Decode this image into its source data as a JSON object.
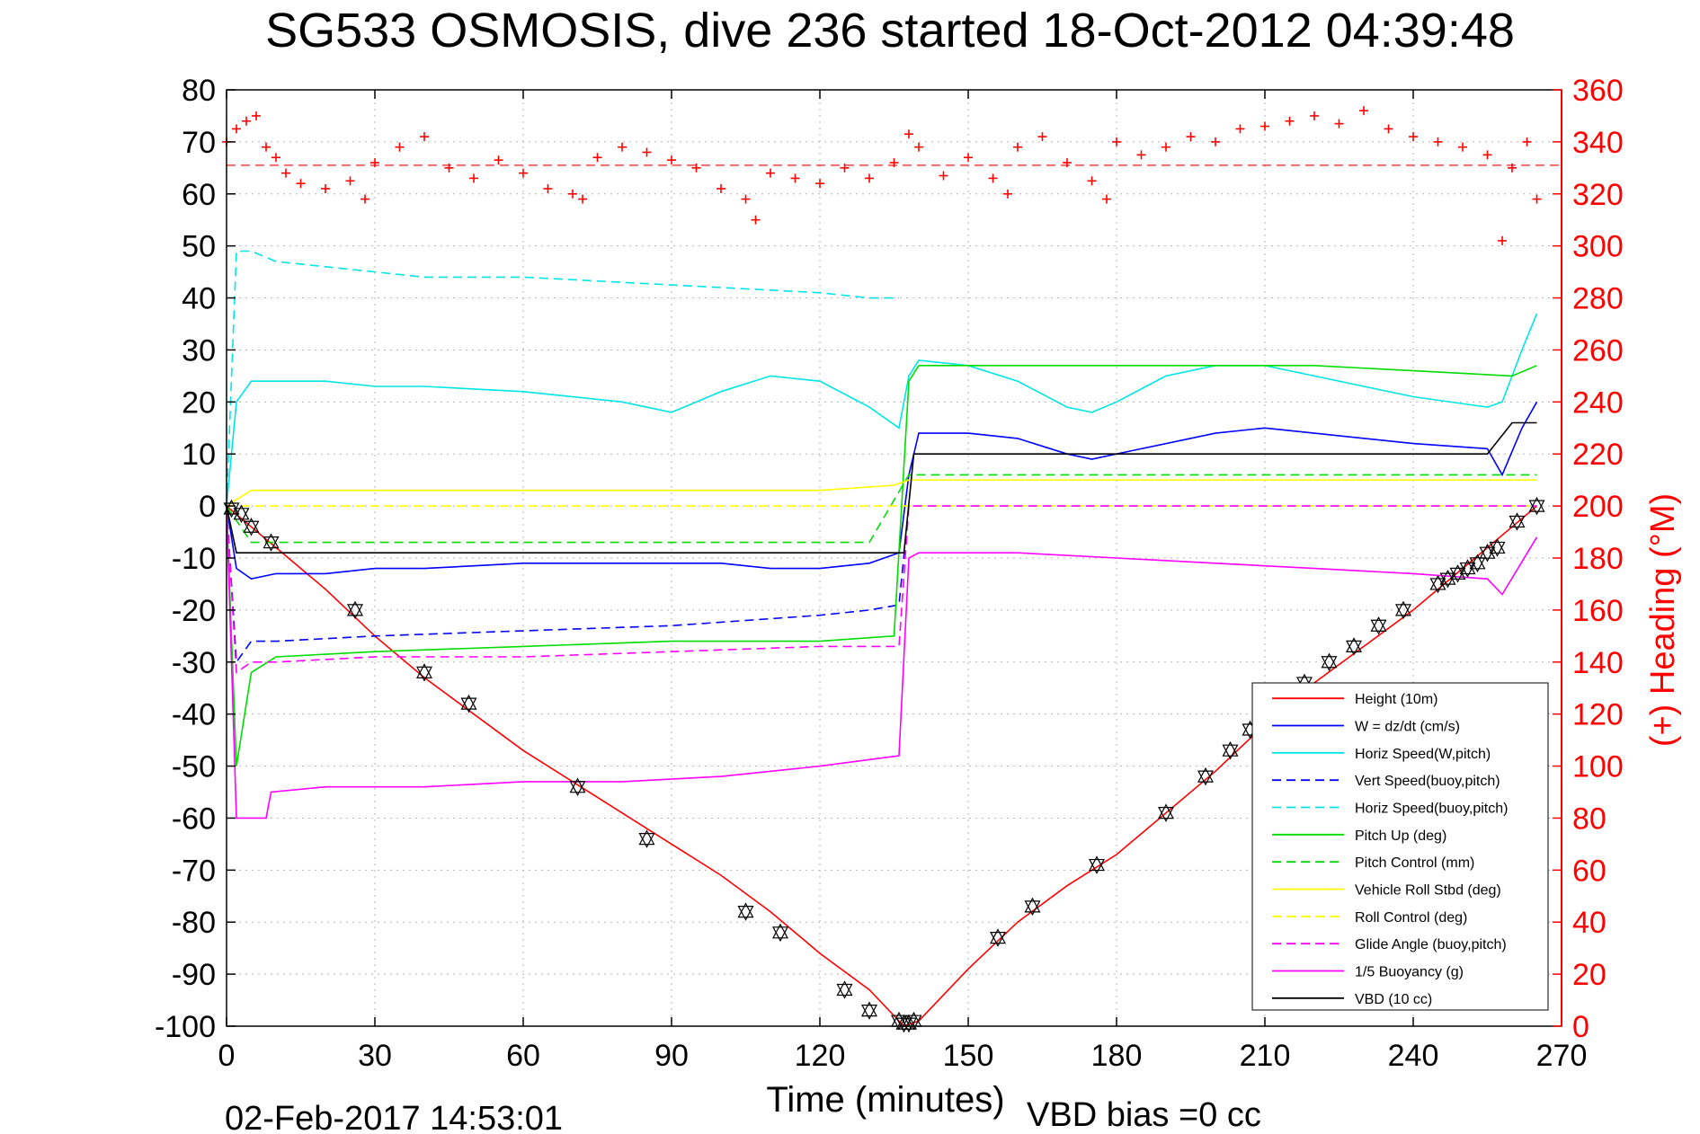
{
  "chart_data": {
    "type": "line",
    "title": "SG533 OSMOSIS, dive 236 started 18-Oct-2012 04:39:48",
    "xlabel": "Time (minutes)",
    "ylabel_right": "(+) Heading (°M)",
    "footer_date": "02-Feb-2017 14:53:01",
    "footer_bias": "VBD bias =0 cc",
    "xlim": [
      0,
      270
    ],
    "ylim_left": [
      -100,
      80
    ],
    "ylim_right": [
      0,
      360
    ],
    "x_ticks": [
      0,
      30,
      60,
      90,
      120,
      150,
      180,
      210,
      240,
      270
    ],
    "y_ticks_left": [
      80,
      70,
      60,
      50,
      40,
      30,
      20,
      10,
      0,
      -10,
      -20,
      -30,
      -40,
      -50,
      -60,
      -70,
      -80,
      -90,
      -100
    ],
    "y_ticks_right": [
      360,
      340,
      320,
      300,
      280,
      260,
      240,
      220,
      200,
      180,
      160,
      140,
      120,
      100,
      80,
      60,
      40,
      20,
      0
    ],
    "grid": true,
    "legend_position": "bottom-right",
    "heading_reference": 331,
    "series": [
      {
        "name": "Height (10m)",
        "color": "#ff0000",
        "style": "solid",
        "x": [
          0,
          5,
          10,
          20,
          30,
          40,
          50,
          60,
          70,
          80,
          90,
          100,
          110,
          120,
          130,
          137,
          140,
          150,
          160,
          170,
          180,
          190,
          200,
          210,
          220,
          230,
          240,
          250,
          260,
          265
        ],
        "y": [
          0,
          -4,
          -8,
          -16,
          -25,
          -33,
          -40,
          -47,
          -53,
          -59,
          -65,
          -71,
          -78,
          -86,
          -93,
          -100,
          -99,
          -89,
          -80,
          -73,
          -67,
          -59,
          -51,
          -42,
          -34,
          -27,
          -20,
          -12,
          -4,
          0
        ]
      },
      {
        "name": "W = dz/dt (cm/s)",
        "color": "#0000ff",
        "style": "solid",
        "x": [
          0,
          2,
          5,
          10,
          20,
          30,
          40,
          60,
          80,
          100,
          110,
          120,
          130,
          136,
          138,
          140,
          150,
          160,
          170,
          175,
          185,
          200,
          210,
          220,
          240,
          255,
          258,
          262,
          265
        ],
        "y": [
          0,
          -12,
          -14,
          -13,
          -13,
          -12,
          -12,
          -11,
          -11,
          -11,
          -12,
          -12,
          -11,
          -9,
          6,
          14,
          14,
          13,
          10,
          9,
          11,
          14,
          15,
          14,
          12,
          11,
          6,
          15,
          20
        ]
      },
      {
        "name": "Horiz Speed(W,pitch)",
        "color": "#00e5e5",
        "style": "solid",
        "x": [
          0,
          2,
          5,
          10,
          20,
          30,
          40,
          60,
          80,
          90,
          100,
          110,
          120,
          130,
          136,
          138,
          140,
          150,
          160,
          170,
          175,
          180,
          190,
          200,
          210,
          220,
          240,
          255,
          258,
          262,
          265
        ],
        "y": [
          0,
          20,
          24,
          24,
          24,
          23,
          23,
          22,
          20,
          18,
          22,
          25,
          24,
          19,
          15,
          25,
          28,
          27,
          24,
          19,
          18,
          20,
          25,
          27,
          27,
          25,
          21,
          19,
          20,
          30,
          37
        ]
      },
      {
        "name": "Vert Speed(buoy,pitch)",
        "color": "#0000ff",
        "style": "dashed",
        "x": [
          0,
          2,
          5,
          10,
          30,
          60,
          90,
          120,
          130,
          136,
          138
        ],
        "y": [
          0,
          -30,
          -26,
          -26,
          -25,
          -24,
          -23,
          -21,
          -20,
          -19,
          0
        ]
      },
      {
        "name": "Horiz Speed(buoy,pitch)",
        "color": "#00e5e5",
        "style": "dashed",
        "x": [
          0,
          2,
          5,
          10,
          20,
          40,
          60,
          80,
          100,
          120,
          130,
          136
        ],
        "y": [
          0,
          49,
          49,
          47,
          46,
          44,
          44,
          43,
          42,
          41,
          40,
          40
        ]
      },
      {
        "name": "Pitch Up (deg)",
        "color": "#00dd00",
        "style": "solid",
        "x": [
          0,
          2,
          5,
          10,
          30,
          60,
          90,
          120,
          135,
          138,
          140,
          160,
          180,
          200,
          220,
          240,
          260,
          265
        ],
        "y": [
          0,
          -50,
          -32,
          -29,
          -28,
          -27,
          -26,
          -26,
          -25,
          24,
          27,
          27,
          27,
          27,
          27,
          26,
          25,
          27
        ]
      },
      {
        "name": "Pitch Control (mm)",
        "color": "#00dd00",
        "style": "dashed",
        "x": [
          0,
          5,
          10,
          60,
          130,
          138,
          140,
          200,
          260,
          265
        ],
        "y": [
          0,
          -7,
          -7,
          -7,
          -7,
          6,
          6,
          6,
          6,
          6
        ]
      },
      {
        "name": "Vehicle Roll Stbd (deg)",
        "color": "#ffff00",
        "style": "solid",
        "x": [
          0,
          5,
          10,
          40,
          80,
          120,
          135,
          138,
          150,
          180,
          210,
          240,
          260,
          265
        ],
        "y": [
          0,
          3,
          3,
          3,
          3,
          3,
          4,
          5,
          5,
          5,
          5,
          5,
          5,
          5
        ]
      },
      {
        "name": "Roll Control (deg)",
        "color": "#ffff00",
        "style": "dashed",
        "x": [
          0,
          5,
          10,
          60,
          130,
          138,
          140,
          200,
          260,
          265
        ],
        "y": [
          0,
          0,
          0,
          0,
          0,
          0,
          0,
          0,
          0,
          0
        ]
      },
      {
        "name": "Glide Angle (buoy,pitch)",
        "color": "#ff00ff",
        "style": "dashed",
        "x": [
          0,
          2,
          5,
          10,
          30,
          60,
          90,
          120,
          136,
          138,
          140,
          200,
          265
        ],
        "y": [
          0,
          -32,
          -30,
          -30,
          -29,
          -29,
          -28,
          -27,
          -27,
          0,
          0,
          0,
          0
        ]
      },
      {
        "name": "1/5 Buoyancy (g)",
        "color": "#ff00ff",
        "style": "solid",
        "x": [
          0,
          2,
          5,
          8,
          9,
          20,
          40,
          60,
          80,
          100,
          120,
          136,
          138,
          140,
          160,
          180,
          200,
          220,
          240,
          255,
          258,
          265
        ],
        "y": [
          0,
          -60,
          -60,
          -60,
          -55,
          -54,
          -54,
          -53,
          -53,
          -52,
          -50,
          -48,
          -10,
          -9,
          -9,
          -10,
          -11,
          -12,
          -13,
          -14,
          -17,
          -6
        ]
      },
      {
        "name": "VBD (10 cc)",
        "color": "#000000",
        "style": "solid",
        "x": [
          0,
          2,
          10,
          60,
          120,
          135,
          137,
          139,
          160,
          200,
          240,
          255,
          260,
          265
        ],
        "y": [
          0,
          -9,
          -9,
          -9,
          -9,
          -9,
          -9,
          10,
          10,
          10,
          10,
          10,
          16,
          16
        ]
      }
    ],
    "heading": {
      "name": "Heading",
      "color": "#ff0000",
      "marker": "+",
      "x": [
        0,
        2,
        4,
        6,
        8,
        10,
        12,
        15,
        20,
        25,
        28,
        30,
        35,
        40,
        45,
        50,
        55,
        60,
        65,
        70,
        72,
        75,
        80,
        85,
        90,
        95,
        100,
        105,
        107,
        110,
        115,
        120,
        125,
        130,
        135,
        138,
        140,
        145,
        150,
        155,
        158,
        160,
        165,
        170,
        175,
        178,
        180,
        185,
        190,
        195,
        200,
        205,
        210,
        215,
        220,
        225,
        230,
        235,
        240,
        245,
        250,
        255,
        258,
        260,
        263,
        265
      ],
      "y": [
        340,
        345,
        348,
        350,
        338,
        334,
        328,
        324,
        322,
        325,
        318,
        332,
        338,
        342,
        330,
        326,
        333,
        328,
        322,
        320,
        318,
        334,
        338,
        336,
        333,
        330,
        322,
        318,
        310,
        328,
        326,
        324,
        330,
        326,
        332,
        343,
        338,
        327,
        334,
        326,
        320,
        338,
        342,
        332,
        325,
        318,
        340,
        335,
        338,
        342,
        340,
        345,
        346,
        348,
        350,
        347,
        352,
        345,
        342,
        340,
        338,
        335,
        302,
        330,
        340,
        318
      ]
    },
    "dive_markers": {
      "x": [
        1,
        3,
        5,
        9,
        26,
        40,
        49,
        71,
        85,
        105,
        112,
        125,
        130,
        136,
        137,
        138,
        139,
        156,
        163,
        176,
        190,
        198,
        203,
        207,
        212,
        218,
        223,
        228,
        233,
        238,
        245,
        247,
        249,
        251,
        253,
        255,
        257,
        261,
        265
      ],
      "y": [
        -0.5,
        -1.5,
        -4,
        -7,
        -20,
        -32,
        -38,
        -54,
        -64,
        -78,
        -82,
        -93,
        -97,
        -99,
        -99.5,
        -99.5,
        -99,
        -83,
        -77,
        -69,
        -59,
        -52,
        -47,
        -43,
        -39,
        -34,
        -30,
        -27,
        -23,
        -20,
        -15,
        -14,
        -13,
        -12,
        -11,
        -9,
        -8,
        -3,
        0
      ]
    }
  }
}
